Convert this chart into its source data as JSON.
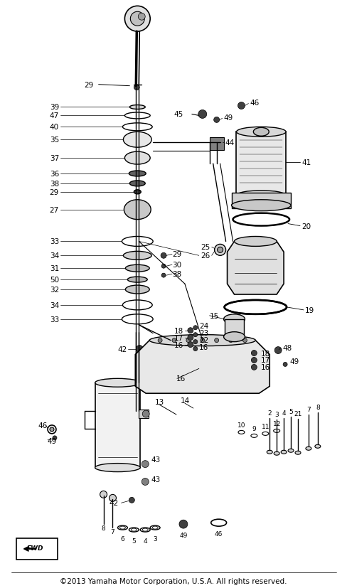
{
  "copyright": "©2013 Yamaha Motor Corporation, U.S.A. All rights reserved.",
  "bg_color": "#ffffff",
  "line_color": "#000000",
  "fig_width": 4.89,
  "fig_height": 8.28,
  "dpi": 100
}
